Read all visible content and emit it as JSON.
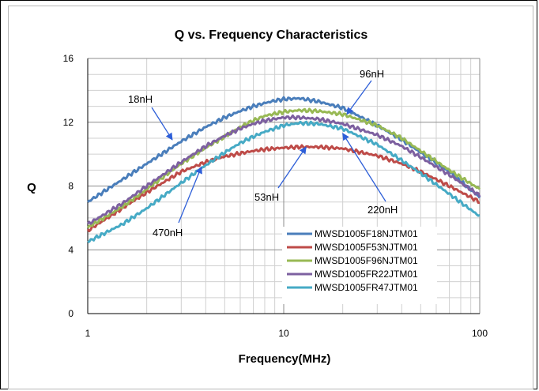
{
  "chart_data": {
    "type": "line",
    "title": "Q vs. Frequency Characteristics",
    "xlabel": "Frequency(MHz)",
    "ylabel": "Q",
    "x_scale": "log",
    "xlim": [
      1,
      100
    ],
    "ylim": [
      0,
      16
    ],
    "x_ticks": [
      "1",
      "10",
      "100"
    ],
    "y_ticks": [
      "0",
      "4",
      "8",
      "12",
      "16"
    ],
    "grid": true,
    "legend_position": "lower-right",
    "series": [
      {
        "name": "MWSD1005F18NJTM01",
        "color": "#4a7ebb",
        "x": [
          1,
          1.5,
          2,
          3,
          4,
          5,
          6,
          7,
          8,
          9,
          10,
          12,
          15,
          20,
          30,
          40,
          50,
          70,
          100
        ],
        "y": [
          7.0,
          8.4,
          9.4,
          10.8,
          11.7,
          12.3,
          12.7,
          13.0,
          13.2,
          13.35,
          13.45,
          13.5,
          13.3,
          12.9,
          11.8,
          10.9,
          10.1,
          8.9,
          7.3
        ]
      },
      {
        "name": "MWSD1005F53NJTM01",
        "color": "#be4b48",
        "x": [
          1,
          1.5,
          2,
          3,
          4,
          5,
          6,
          7,
          8,
          10,
          12,
          15,
          20,
          30,
          40,
          50,
          70,
          100
        ],
        "y": [
          5.2,
          6.6,
          7.6,
          8.9,
          9.5,
          9.85,
          10.05,
          10.2,
          10.3,
          10.4,
          10.45,
          10.45,
          10.35,
          9.9,
          9.4,
          8.9,
          8.0,
          7.0
        ]
      },
      {
        "name": "MWSD1005F96NJTM01",
        "color": "#98b954",
        "x": [
          1,
          1.5,
          2,
          3,
          4,
          5,
          6,
          7,
          8,
          10,
          12,
          15,
          20,
          30,
          40,
          50,
          70,
          100
        ],
        "y": [
          5.4,
          6.7,
          7.8,
          9.4,
          10.4,
          11.1,
          11.7,
          12.1,
          12.4,
          12.65,
          12.75,
          12.7,
          12.5,
          11.8,
          11.0,
          10.2,
          9.0,
          7.8
        ]
      },
      {
        "name": "MWSD1005FR22JTM01",
        "color": "#7d60a0",
        "x": [
          1,
          1.5,
          2,
          3,
          4,
          5,
          6,
          7,
          8,
          10,
          12,
          15,
          20,
          30,
          40,
          50,
          70,
          100
        ],
        "y": [
          5.6,
          6.9,
          8.0,
          9.5,
          10.5,
          11.15,
          11.6,
          11.9,
          12.1,
          12.3,
          12.3,
          12.2,
          11.9,
          11.2,
          10.5,
          9.8,
          8.7,
          7.4
        ]
      },
      {
        "name": "MWSD1005FR47JTM01",
        "color": "#46aac5",
        "x": [
          1,
          1.5,
          2,
          3,
          4,
          5,
          6,
          7,
          8,
          10,
          12,
          15,
          20,
          30,
          40,
          50,
          70,
          100
        ],
        "y": [
          4.5,
          5.6,
          6.6,
          8.2,
          9.3,
          10.1,
          10.7,
          11.1,
          11.4,
          11.8,
          11.95,
          11.9,
          11.6,
          10.6,
          9.6,
          8.8,
          7.5,
          6.1
        ]
      }
    ],
    "annotations": [
      {
        "text": "18nH",
        "arrow_to": [
          2.7,
          10.9
        ]
      },
      {
        "text": "96nH",
        "arrow_to": [
          21,
          12.5
        ]
      },
      {
        "text": "53nH",
        "arrow_to": [
          13,
          10.45
        ]
      },
      {
        "text": "220nH",
        "arrow_to": [
          20,
          11.3
        ]
      },
      {
        "text": "470nH",
        "arrow_to": [
          3.8,
          9.2
        ]
      }
    ]
  }
}
